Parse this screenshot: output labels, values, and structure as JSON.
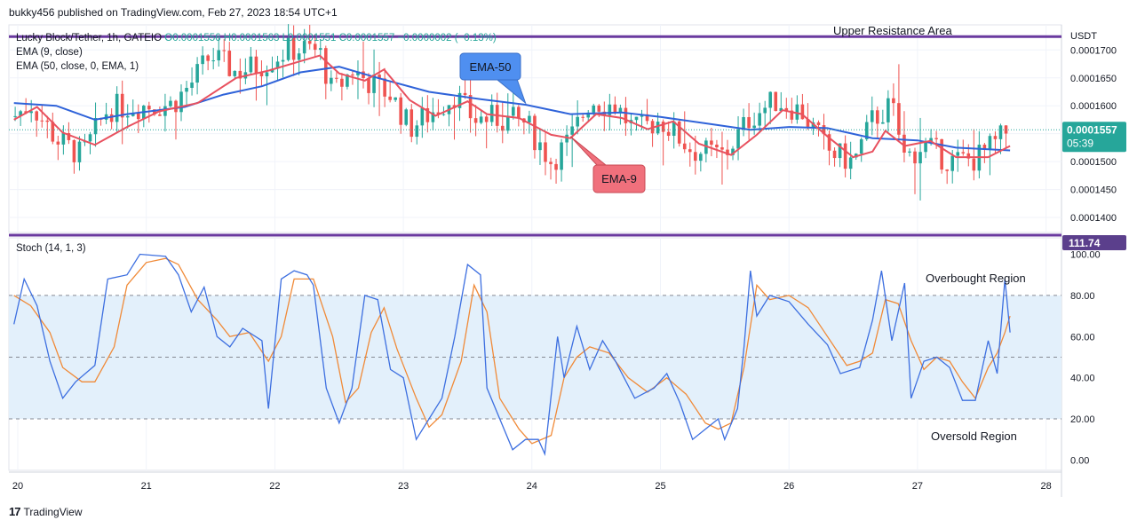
{
  "publisher": "bukky456 published on TradingView.com, Feb 27, 2023 18:54 UTC+1",
  "footer": {
    "brand": "TradingView",
    "logo_glyph": "17"
  },
  "colors": {
    "ema_fast": "#e8515f",
    "ema_slow": "#2f63d9",
    "bull": "#26a69a",
    "bear": "#ef5350",
    "resistance": "#6a3a9f",
    "stoch_k": "#3d6fe0",
    "stoch_d": "#f08a38",
    "stoch_band": "#e3f0fb",
    "last_price_bg": "#26a69a",
    "stoch_tag_bg": "#5b3f8c",
    "ema50_label_bg": "#4f8ff0",
    "ema9_label_bg": "#f0707c"
  },
  "chart_data": [
    {
      "type": "candlestick",
      "legend": {
        "symbol": "Lucky Block/Tether, 1h, GATEIO",
        "o": "O0.0001556",
        "h": "H0.0001563",
        "l": "L0.0001551",
        "c": "C0.0001557",
        "chg": "−0.0000002 (−0.13%)",
        "ema9": "EMA (9, close)",
        "ema50": "EMA (50, close, 0, EMA, 1)"
      },
      "currency": "USDT",
      "ylim": [
        0.0001373,
        0.0001745
      ],
      "y_ticks": [
        0.00017,
        0.000165,
        0.00016,
        0.000155,
        0.00015,
        0.000145,
        0.00014
      ],
      "y_tick_labels": [
        "0.0001700",
        "0.0001650",
        "0.0001600",
        "0.0001550",
        "0.0001500",
        "0.0001450",
        "0.0001400"
      ],
      "x_labels": [
        "20",
        "21",
        "22",
        "23",
        "24",
        "25",
        "26",
        "27",
        "28"
      ],
      "last_price": 0.0001557,
      "last_price_label": "0.0001557",
      "countdown": "05:39",
      "resistance_level": 0.0001724,
      "resistance_label": "Upper Resistance Area",
      "annotations": [
        {
          "text": "EMA-50",
          "target_day": 3.95,
          "target_price": 0.0001605
        },
        {
          "text": "EMA-9",
          "target_day": 4.3,
          "target_price": 0.0001545
        }
      ],
      "ema9_path": [
        [
          -0.03,
          0.0001575
        ],
        [
          0.15,
          0.0001598
        ],
        [
          0.35,
          0.0001552
        ],
        [
          0.6,
          0.000153
        ],
        [
          0.85,
          0.0001562
        ],
        [
          1.1,
          0.000159
        ],
        [
          1.4,
          0.0001605
        ],
        [
          1.7,
          0.000165
        ],
        [
          1.95,
          0.0001663
        ],
        [
          2.2,
          0.000168
        ],
        [
          2.35,
          0.000169
        ],
        [
          2.5,
          0.0001658
        ],
        [
          2.7,
          0.0001645
        ],
        [
          2.85,
          0.0001665
        ],
        [
          3.05,
          0.000161
        ],
        [
          3.25,
          0.0001582
        ],
        [
          3.5,
          0.0001608
        ],
        [
          3.65,
          0.0001585
        ],
        [
          3.9,
          0.0001578
        ],
        [
          4.15,
          0.0001548
        ],
        [
          4.3,
          0.0001542
        ],
        [
          4.5,
          0.0001585
        ],
        [
          4.7,
          0.0001578
        ],
        [
          4.9,
          0.0001558
        ],
        [
          5.1,
          0.0001572
        ],
        [
          5.3,
          0.0001532
        ],
        [
          5.55,
          0.0001512
        ],
        [
          5.75,
          0.0001548
        ],
        [
          5.95,
          0.0001592
        ],
        [
          6.1,
          0.0001585
        ],
        [
          6.3,
          0.0001545
        ],
        [
          6.5,
          0.0001508
        ],
        [
          6.65,
          0.0001518
        ],
        [
          6.75,
          0.0001555
        ],
        [
          6.9,
          0.0001528
        ],
        [
          7.1,
          0.0001537
        ],
        [
          7.3,
          0.0001508
        ],
        [
          7.55,
          0.0001508
        ],
        [
          7.72,
          0.0001528
        ]
      ],
      "ema50_path": [
        [
          -0.03,
          0.0001605
        ],
        [
          0.3,
          0.00016
        ],
        [
          0.6,
          0.0001575
        ],
        [
          0.85,
          0.0001585
        ],
        [
          1.3,
          0.0001598
        ],
        [
          1.6,
          0.000162
        ],
        [
          1.9,
          0.0001635
        ],
        [
          2.2,
          0.000166
        ],
        [
          2.5,
          0.000167
        ],
        [
          2.8,
          0.000165
        ],
        [
          3.2,
          0.0001625
        ],
        [
          3.6,
          0.0001612
        ],
        [
          3.95,
          0.0001602
        ],
        [
          4.3,
          0.0001585
        ],
        [
          4.7,
          0.0001588
        ],
        [
          5.0,
          0.000158
        ],
        [
          5.4,
          0.0001567
        ],
        [
          5.7,
          0.0001557
        ],
        [
          6.0,
          0.0001562
        ],
        [
          6.3,
          0.000156
        ],
        [
          6.65,
          0.0001542
        ],
        [
          7.0,
          0.0001538
        ],
        [
          7.3,
          0.0001525
        ],
        [
          7.72,
          0.000152
        ]
      ],
      "candle_anchors": [
        [
          -0.03,
          0.000158
        ],
        [
          0.1,
          0.0001605
        ],
        [
          0.3,
          0.000154
        ],
        [
          0.5,
          0.000151
        ],
        [
          0.7,
          0.0001595
        ],
        [
          0.9,
          0.00016
        ],
        [
          1.2,
          0.0001602
        ],
        [
          1.35,
          0.000164
        ],
        [
          1.5,
          0.000169
        ],
        [
          1.7,
          0.000166
        ],
        [
          1.9,
          0.0001675
        ],
        [
          2.1,
          0.00017
        ],
        [
          2.25,
          0.0001702
        ],
        [
          2.35,
          0.0001695
        ],
        [
          2.45,
          0.000162
        ],
        [
          2.6,
          0.0001665
        ],
        [
          2.75,
          0.000164
        ],
        [
          2.9,
          0.000162
        ],
        [
          3.05,
          0.000156
        ],
        [
          3.2,
          0.0001585
        ],
        [
          3.4,
          0.000162
        ],
        [
          3.55,
          0.0001575
        ],
        [
          3.7,
          0.0001578
        ],
        [
          3.95,
          0.000157
        ],
        [
          4.15,
          0.00015
        ],
        [
          4.3,
          0.000154
        ],
        [
          4.45,
          0.000161
        ],
        [
          4.65,
          0.00016
        ],
        [
          4.8,
          0.0001555
        ],
        [
          5.0,
          0.0001575
        ],
        [
          5.25,
          0.000152
        ],
        [
          5.5,
          0.0001512
        ],
        [
          5.7,
          0.000158
        ],
        [
          5.9,
          0.000161
        ],
        [
          6.1,
          0.000159
        ],
        [
          6.3,
          0.000152
        ],
        [
          6.5,
          0.0001498
        ],
        [
          6.65,
          0.0001575
        ],
        [
          6.8,
          0.00016
        ],
        [
          6.9,
          0.0001505
        ],
        [
          7.05,
          0.000153
        ],
        [
          7.25,
          0.00015
        ],
        [
          7.45,
          0.0001505
        ],
        [
          7.6,
          0.000153
        ],
        [
          7.72,
          0.000156
        ]
      ]
    },
    {
      "type": "line",
      "title": "Stoch (14, 1, 3)",
      "ylim": [
        -5,
        108
      ],
      "y_ticks": [
        0,
        20,
        40,
        60,
        80,
        100
      ],
      "y_tick_labels": [
        "0.00",
        "20.00",
        "40.00",
        "60.00",
        "80.00",
        "100.00"
      ],
      "band": [
        20,
        80
      ],
      "midline": 50,
      "overbought_label": "Overbought Region",
      "oversold_label": "Oversold Region",
      "tag": "111.74",
      "series": [
        {
          "key": "k",
          "points": [
            [
              -0.03,
              66
            ],
            [
              0.05,
              88
            ],
            [
              0.15,
              75
            ],
            [
              0.25,
              48
            ],
            [
              0.35,
              30
            ],
            [
              0.45,
              38
            ],
            [
              0.6,
              46
            ],
            [
              0.7,
              88
            ],
            [
              0.85,
              90
            ],
            [
              0.95,
              100
            ],
            [
              1.15,
              99
            ],
            [
              1.25,
              90
            ],
            [
              1.35,
              72
            ],
            [
              1.45,
              84
            ],
            [
              1.55,
              60
            ],
            [
              1.65,
              55
            ],
            [
              1.75,
              64
            ],
            [
              1.9,
              58
            ],
            [
              1.95,
              25
            ],
            [
              2.05,
              88
            ],
            [
              2.15,
              92
            ],
            [
              2.25,
              90
            ],
            [
              2.3,
              85
            ],
            [
              2.4,
              35
            ],
            [
              2.5,
              18
            ],
            [
              2.6,
              35
            ],
            [
              2.7,
              80
            ],
            [
              2.8,
              78
            ],
            [
              2.9,
              44
            ],
            [
              3.0,
              40
            ],
            [
              3.1,
              10
            ],
            [
              3.2,
              20
            ],
            [
              3.3,
              30
            ],
            [
              3.4,
              60
            ],
            [
              3.5,
              95
            ],
            [
              3.6,
              90
            ],
            [
              3.65,
              35
            ],
            [
              3.75,
              20
            ],
            [
              3.85,
              5
            ],
            [
              3.95,
              10
            ],
            [
              4.05,
              10
            ],
            [
              4.1,
              3
            ],
            [
              4.2,
              60
            ],
            [
              4.25,
              40
            ],
            [
              4.35,
              65
            ],
            [
              4.45,
              44
            ],
            [
              4.55,
              58
            ],
            [
              4.65,
              48
            ],
            [
              4.8,
              30
            ],
            [
              4.95,
              35
            ],
            [
              5.05,
              42
            ],
            [
              5.15,
              28
            ],
            [
              5.25,
              10
            ],
            [
              5.35,
              15
            ],
            [
              5.45,
              20
            ],
            [
              5.5,
              10
            ],
            [
              5.6,
              25
            ],
            [
              5.65,
              55
            ],
            [
              5.7,
              92
            ],
            [
              5.75,
              70
            ],
            [
              5.85,
              80
            ],
            [
              6.0,
              77
            ],
            [
              6.15,
              66
            ],
            [
              6.3,
              56
            ],
            [
              6.4,
              42
            ],
            [
              6.55,
              45
            ],
            [
              6.65,
              68
            ],
            [
              6.72,
              92
            ],
            [
              6.8,
              58
            ],
            [
              6.9,
              86
            ],
            [
              6.95,
              30
            ],
            [
              7.05,
              48
            ],
            [
              7.15,
              50
            ],
            [
              7.25,
              45
            ],
            [
              7.35,
              29
            ],
            [
              7.45,
              29
            ],
            [
              7.55,
              58
            ],
            [
              7.62,
              42
            ],
            [
              7.68,
              88
            ],
            [
              7.72,
              62
            ]
          ]
        },
        {
          "key": "d",
          "points": [
            [
              -0.03,
              80
            ],
            [
              0.1,
              75
            ],
            [
              0.25,
              62
            ],
            [
              0.35,
              45
            ],
            [
              0.5,
              38
            ],
            [
              0.6,
              38
            ],
            [
              0.75,
              55
            ],
            [
              0.85,
              85
            ],
            [
              1.0,
              96
            ],
            [
              1.15,
              98
            ],
            [
              1.25,
              95
            ],
            [
              1.4,
              78
            ],
            [
              1.55,
              68
            ],
            [
              1.65,
              60
            ],
            [
              1.8,
              62
            ],
            [
              1.95,
              48
            ],
            [
              2.05,
              60
            ],
            [
              2.15,
              88
            ],
            [
              2.3,
              88
            ],
            [
              2.45,
              60
            ],
            [
              2.55,
              28
            ],
            [
              2.65,
              35
            ],
            [
              2.75,
              62
            ],
            [
              2.85,
              74
            ],
            [
              2.95,
              54
            ],
            [
              3.1,
              30
            ],
            [
              3.2,
              16
            ],
            [
              3.3,
              22
            ],
            [
              3.45,
              48
            ],
            [
              3.55,
              85
            ],
            [
              3.65,
              72
            ],
            [
              3.75,
              30
            ],
            [
              3.9,
              15
            ],
            [
              4.0,
              8
            ],
            [
              4.15,
              12
            ],
            [
              4.25,
              40
            ],
            [
              4.35,
              50
            ],
            [
              4.45,
              55
            ],
            [
              4.6,
              52
            ],
            [
              4.75,
              40
            ],
            [
              4.9,
              33
            ],
            [
              5.05,
              40
            ],
            [
              5.2,
              32
            ],
            [
              5.35,
              18
            ],
            [
              5.45,
              15
            ],
            [
              5.55,
              18
            ],
            [
              5.65,
              45
            ],
            [
              5.75,
              85
            ],
            [
              5.85,
              78
            ],
            [
              6.0,
              80
            ],
            [
              6.15,
              74
            ],
            [
              6.3,
              60
            ],
            [
              6.45,
              46
            ],
            [
              6.55,
              48
            ],
            [
              6.65,
              52
            ],
            [
              6.75,
              78
            ],
            [
              6.85,
              76
            ],
            [
              6.95,
              58
            ],
            [
              7.05,
              44
            ],
            [
              7.15,
              50
            ],
            [
              7.25,
              48
            ],
            [
              7.35,
              38
            ],
            [
              7.45,
              30
            ],
            [
              7.55,
              45
            ],
            [
              7.62,
              52
            ],
            [
              7.68,
              62
            ],
            [
              7.72,
              70
            ]
          ]
        }
      ]
    }
  ]
}
